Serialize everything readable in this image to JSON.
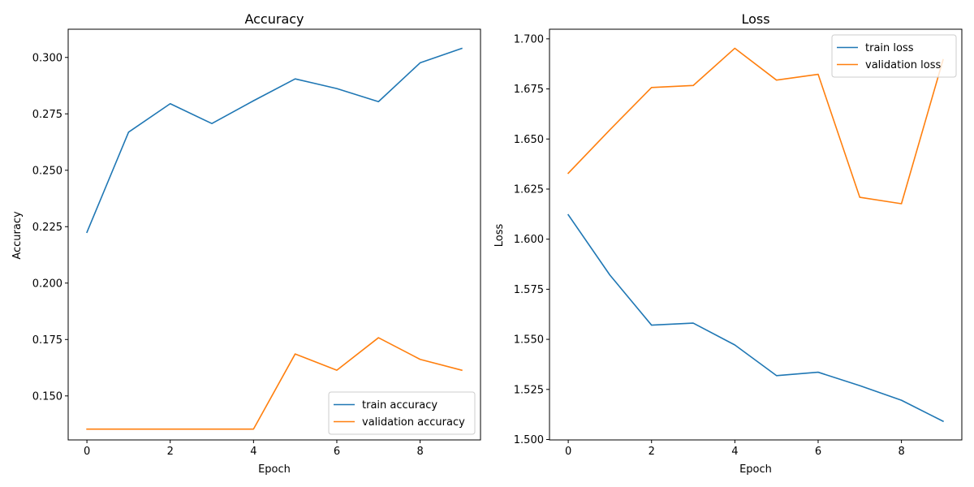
{
  "chart_data": [
    {
      "type": "line",
      "title": "Accuracy",
      "xlabel": "Epoch",
      "ylabel": "Accuracy",
      "x": [
        0,
        1,
        2,
        3,
        4,
        5,
        6,
        7,
        8,
        9
      ],
      "xlim": [
        -0.45,
        9.45
      ],
      "ylim": [
        0.1305,
        0.3125
      ],
      "xticks": [
        0,
        2,
        4,
        6,
        8
      ],
      "xtick_labels": [
        "0",
        "2",
        "4",
        "6",
        "8"
      ],
      "yticks": [
        0.15,
        0.175,
        0.2,
        0.225,
        0.25,
        0.275,
        0.3
      ],
      "ytick_labels": [
        "0.150",
        "0.175",
        "0.200",
        "0.225",
        "0.250",
        "0.275",
        "0.300"
      ],
      "legend_position": "lower-right",
      "grid": false,
      "series": [
        {
          "name": "train accuracy",
          "color": "#1f77b4",
          "values": [
            0.2225,
            0.2669,
            0.2795,
            0.2707,
            0.2808,
            0.2905,
            0.2862,
            0.2804,
            0.2976,
            0.304
          ]
        },
        {
          "name": "validation accuracy",
          "color": "#ff7f0e",
          "values": [
            0.1353,
            0.1353,
            0.1353,
            0.1353,
            0.1353,
            0.1686,
            0.1614,
            0.1758,
            0.1662,
            0.1614
          ]
        }
      ]
    },
    {
      "type": "line",
      "title": "Loss",
      "xlabel": "Epoch",
      "ylabel": "Loss",
      "x": [
        0,
        1,
        2,
        3,
        4,
        5,
        6,
        7,
        8,
        9
      ],
      "xlim": [
        -0.45,
        9.45
      ],
      "ylim": [
        1.4998,
        1.7048
      ],
      "xticks": [
        0,
        2,
        4,
        6,
        8
      ],
      "xtick_labels": [
        "0",
        "2",
        "4",
        "6",
        "8"
      ],
      "yticks": [
        1.5,
        1.525,
        1.55,
        1.575,
        1.6,
        1.625,
        1.65,
        1.675,
        1.7
      ],
      "ytick_labels": [
        "1.500",
        "1.525",
        "1.550",
        "1.575",
        "1.600",
        "1.625",
        "1.650",
        "1.675",
        "1.700"
      ],
      "legend_position": "upper-right",
      "grid": false,
      "series": [
        {
          "name": "train loss",
          "color": "#1f77b4",
          "values": [
            1.6122,
            1.5821,
            1.5571,
            1.5581,
            1.5472,
            1.5319,
            1.5336,
            1.5269,
            1.5196,
            1.5091
          ]
        },
        {
          "name": "validation loss",
          "color": "#ff7f0e",
          "values": [
            1.6329,
            1.6546,
            1.6757,
            1.6767,
            1.6953,
            1.6794,
            1.6823,
            1.6209,
            1.6177,
            1.6896
          ]
        }
      ]
    }
  ]
}
